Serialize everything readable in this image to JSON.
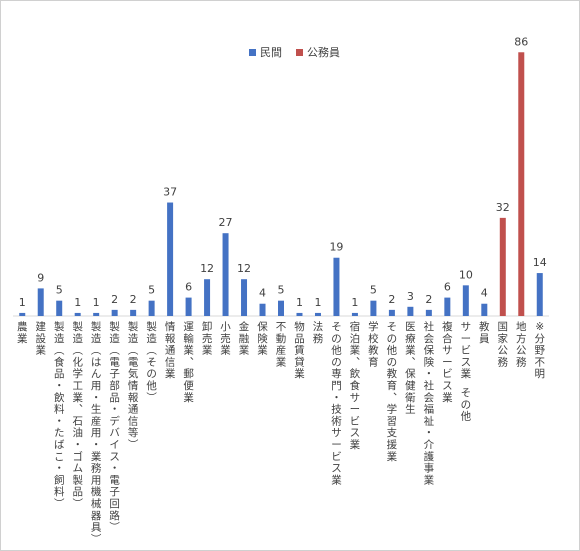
{
  "chart_data": {
    "type": "bar",
    "title": "",
    "xlabel": "",
    "ylabel": "",
    "ylim": [
      0,
      90
    ],
    "grid": false,
    "legend_position": "top-center",
    "colors": {
      "private": "#4472c4",
      "public": "#c0504d"
    },
    "series": [
      {
        "name": "民間",
        "color": "#4472c4"
      },
      {
        "name": "公務員",
        "color": "#c0504d"
      }
    ],
    "categories": [
      {
        "label": "農業",
        "value": 1,
        "series": 0
      },
      {
        "label": "建設業",
        "value": 9,
        "series": 0
      },
      {
        "label": "製造（食品・飲料・たばこ・飼料）",
        "value": 5,
        "series": 0
      },
      {
        "label": "製造（化学工業、石油・ゴム製品）",
        "value": 1,
        "series": 0
      },
      {
        "label": "製造（はん用・生産用・業務用機械器具）",
        "value": 1,
        "series": 0
      },
      {
        "label": "製造（電子部品・デバイス・電子回路）",
        "value": 2,
        "series": 0
      },
      {
        "label": "製造（電気情報通信等）",
        "value": 2,
        "series": 0
      },
      {
        "label": "製造（その他）",
        "value": 5,
        "series": 0
      },
      {
        "label": "情報通信業",
        "value": 37,
        "series": 0
      },
      {
        "label": "運輸業、郵便業",
        "value": 6,
        "series": 0
      },
      {
        "label": "卸売業",
        "value": 12,
        "series": 0
      },
      {
        "label": "小売業",
        "value": 27,
        "series": 0
      },
      {
        "label": "金融業",
        "value": 12,
        "series": 0
      },
      {
        "label": "保険業",
        "value": 4,
        "series": 0
      },
      {
        "label": "不動産業",
        "value": 5,
        "series": 0
      },
      {
        "label": "物品賃貸業",
        "value": 1,
        "series": 0
      },
      {
        "label": "法務",
        "value": 1,
        "series": 0
      },
      {
        "label": "その他の専門・技術サービス業",
        "value": 19,
        "series": 0
      },
      {
        "label": "宿泊業、飲食サービス業",
        "value": 1,
        "series": 0
      },
      {
        "label": "学校教育",
        "value": 5,
        "series": 0
      },
      {
        "label": "その他の教育、学習支援業",
        "value": 2,
        "series": 0
      },
      {
        "label": "医療業、保健衛生",
        "value": 3,
        "series": 0
      },
      {
        "label": "社会保険・社会福祉・介護事業",
        "value": 2,
        "series": 0
      },
      {
        "label": "複合サービス業",
        "value": 6,
        "series": 0
      },
      {
        "label": "サービス業 その他",
        "value": 10,
        "series": 0
      },
      {
        "label": "教員",
        "value": 4,
        "series": 0
      },
      {
        "label": "国家公務",
        "value": 32,
        "series": 1
      },
      {
        "label": "地方公務",
        "value": 86,
        "series": 1
      },
      {
        "label": "※分野不明",
        "value": 14,
        "series": 0
      }
    ]
  }
}
